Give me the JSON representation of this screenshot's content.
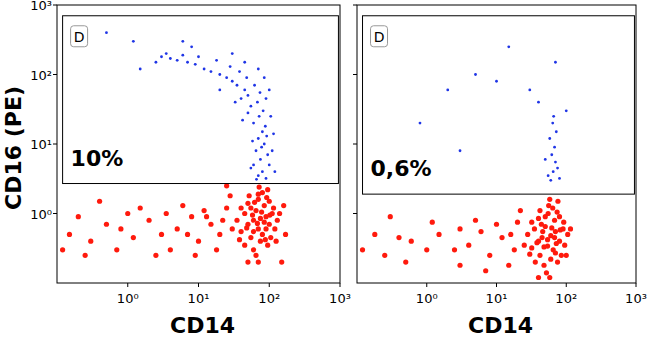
{
  "chart_data": [
    {
      "type": "scatter",
      "xlabel": "CD14",
      "ylabel": "CD16 (PE)",
      "log": true,
      "grid": false,
      "marker": "circle",
      "xlim": [
        0.1,
        1000
      ],
      "ylim": [
        0.1,
        1000
      ],
      "xticks": [
        {
          "value": 1,
          "label": "10⁰"
        },
        {
          "value": 10,
          "label": "10¹"
        },
        {
          "value": 100,
          "label": "10²"
        },
        {
          "value": 1000,
          "label": "10³"
        }
      ],
      "yticks": [
        {
          "value": 1,
          "label": "10⁰"
        },
        {
          "value": 10,
          "label": "10¹"
        },
        {
          "value": 100,
          "label": "10²"
        },
        {
          "value": 1000,
          "label": "10³"
        }
      ],
      "gates": [
        {
          "label": "D",
          "x": [
            0.12,
            950
          ],
          "y": [
            2.7,
            700
          ],
          "value": 10,
          "value_label": "10%"
        }
      ],
      "series": [
        {
          "color": "#ff1a0d",
          "x": [
            70,
            60,
            80,
            50,
            90,
            65,
            75,
            55,
            100,
            45,
            85,
            70,
            60,
            95,
            40,
            110,
            120,
            35,
            50,
            80,
            65,
            105,
            75,
            55,
            90,
            130,
            45,
            70,
            100,
            60,
            85,
            40,
            115,
            50,
            95,
            30,
            70,
            125,
            58,
            78,
            88,
            48,
            68,
            102,
            62,
            92,
            38,
            140,
            72,
            52,
            20,
            15,
            10,
            8,
            5,
            3,
            2,
            1.2,
            0.8,
            0.5,
            0.3,
            0.2,
            25,
            12,
            6,
            4,
            1.5,
            0.7,
            18,
            9,
            28,
            3.5,
            0.4,
            0.15,
            22,
            2.5,
            7,
            13,
            1,
            0.25,
            150,
            170,
            160,
            25,
            0.12
          ],
          "values": [
            0.6,
            0.8,
            0.5,
            0.7,
            0.9,
            1.1,
            0.4,
            0.45,
            0.7,
            1.0,
            1.3,
            1.6,
            0.3,
            0.35,
            0.55,
            1.0,
            0.6,
            0.8,
            1.4,
            2.0,
            0.25,
            0.45,
            0.85,
            1.2,
            0.6,
            0.8,
            0.35,
            1.9,
            1.5,
            0.55,
            0.75,
            1.2,
            1.2,
            0.2,
            2.2,
            0.6,
            0.2,
            0.4,
            0.95,
            1.05,
            0.42,
            0.62,
            0.72,
            0.95,
            1.45,
            1.7,
            0.42,
            1.0,
            2.4,
            1.8,
            0.5,
            0.7,
            0.4,
            0.9,
            0.6,
            0.5,
            0.8,
            0.45,
            0.6,
            0.7,
            0.4,
            0.9,
            1.2,
            1.1,
            1.3,
            0.3,
            1.2,
            0.3,
            0.3,
            0.25,
            1.8,
            1.0,
            1.5,
            0.5,
            0.8,
            0.25,
            0.5,
            0.9,
            1.0,
            0.25,
            0.2,
            0.5,
            1.3,
            2.5,
            0.3
          ]
        },
        {
          "color": "#1f35e6",
          "x": [
            70,
            80,
            60,
            90,
            75,
            65,
            85,
            100,
            55,
            70,
            80,
            95,
            60,
            72,
            88,
            66,
            78,
            92,
            58,
            82,
            68,
            55,
            50,
            45,
            40,
            35,
            30,
            25,
            20,
            15,
            12,
            9,
            7,
            5,
            4,
            3,
            2.5,
            3.5,
            6,
            10,
            18,
            28,
            38,
            48,
            62,
            74,
            90,
            105,
            110,
            115,
            120,
            50,
            42,
            33,
            20,
            1.5,
            8,
            0.5,
            6,
            1.2,
            100,
            85,
            70,
            45,
            30
          ],
          "values": [
            3.5,
            4,
            5,
            3.2,
            6,
            8,
            10,
            5,
            4.5,
            12,
            15,
            7,
            20,
            25,
            18,
            3.1,
            9,
            13,
            11,
            30,
            40,
            35,
            50,
            60,
            45,
            70,
            80,
            90,
            100,
            110,
            120,
            140,
            150,
            160,
            170,
            180,
            150,
            200,
            190,
            180,
            160,
            130,
            110,
            90,
            70,
            55,
            45,
            25,
            8,
            14,
            4,
            28,
            22,
            40,
            60,
            120,
            250,
            400,
            300,
            300,
            60,
            90,
            120,
            150,
            200
          ]
        }
      ]
    },
    {
      "type": "scatter",
      "xlabel": "CD14",
      "log": true,
      "grid": false,
      "marker": "circle",
      "tick_labels": "x",
      "xlim": [
        0.1,
        1000
      ],
      "ylim": [
        0.1,
        1000
      ],
      "xticks": [
        {
          "value": 1,
          "label": "10⁰"
        },
        {
          "value": 10,
          "label": "10¹"
        },
        {
          "value": 100,
          "label": "10²"
        },
        {
          "value": 1000,
          "label": "10³"
        }
      ],
      "yticks": [
        1,
        10,
        100,
        1000
      ],
      "gates": [
        {
          "label": "D",
          "x": [
            0.12,
            950
          ],
          "y": [
            1.9,
            700
          ],
          "value": 0.6,
          "value_label": "0,6%"
        }
      ],
      "series": [
        {
          "color": "#ff1a0d",
          "x": [
            54,
            45,
            65,
            40,
            70,
            50,
            60,
            42,
            80,
            35,
            68,
            55,
            48,
            75,
            32,
            90,
            95,
            28,
            40,
            64,
            52,
            85,
            60,
            44,
            72,
            105,
            36,
            56,
            80,
            48,
            68,
            32,
            92,
            40,
            76,
            25,
            58,
            100,
            46,
            62,
            70,
            38,
            54,
            82,
            50,
            74,
            30,
            115,
            58,
            42,
            18,
            12,
            8,
            6,
            4,
            2.5,
            1.5,
            1,
            0.6,
            0.4,
            0.25,
            0.18,
            20,
            10,
            5,
            3,
            1.2,
            0.5,
            15,
            7,
            22,
            3,
            0.3,
            0.12,
            16
          ],
          "values": [
            0.34,
            0.45,
            0.3,
            0.4,
            0.55,
            0.65,
            0.22,
            0.25,
            0.4,
            0.6,
            0.8,
            1.0,
            0.18,
            0.2,
            0.32,
            0.6,
            0.35,
            0.5,
            0.85,
            1.2,
            0.14,
            0.25,
            0.48,
            0.7,
            0.37,
            0.5,
            0.2,
            1.3,
            0.9,
            0.33,
            0.45,
            0.75,
            0.75,
            0.12,
            1.5,
            0.35,
            0.12,
            0.25,
            0.55,
            0.62,
            0.27,
            0.38,
            0.42,
            0.58,
            0.9,
            1.05,
            0.26,
            0.6,
            1.6,
            1.1,
            0.3,
            0.45,
            0.25,
            0.55,
            0.35,
            0.3,
            0.5,
            0.3,
            0.4,
            0.45,
            0.25,
            0.5,
            0.75,
            0.7,
            0.8,
            0.18,
            0.75,
            0.2,
            0.18,
            0.15,
            1.1,
            0.6,
            0.9,
            0.3,
            0.5
          ]
        },
        {
          "color": "#1f35e6",
          "x": [
            60,
            65,
            70,
            55,
            62,
            68,
            58,
            72,
            64,
            75,
            50,
            66,
            40,
            30,
            10,
            5,
            2,
            70,
            100,
            0.8,
            15,
            3,
            80
          ],
          "values": [
            3,
            4,
            5.5,
            3.5,
            7,
            9,
            12,
            15,
            20,
            4.5,
            6,
            25,
            40,
            60,
            80,
            100,
            60,
            150,
            30,
            20,
            250,
            8,
            3.2
          ]
        }
      ]
    }
  ]
}
